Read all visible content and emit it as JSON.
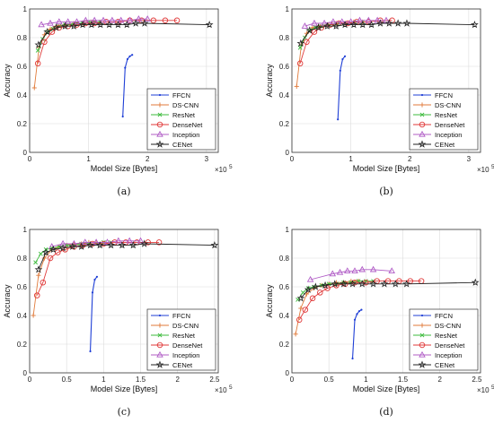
{
  "figure": {
    "panel_labels": [
      "(a)",
      "(b)",
      "(c)",
      "(d)"
    ],
    "xlabel": "Model Size [Bytes]",
    "ylabel": "Accuracy",
    "x_exponent": "×10",
    "x_exponent_power": "5"
  },
  "colors": {
    "FFCN": "#1f3fd6",
    "DS-CNN": "#e07a3a",
    "ResNet": "#3dbb3d",
    "DenseNet": "#e03a3a",
    "Inception": "#b05cc6",
    "CENet": "#222222"
  },
  "chart_data": [
    {
      "type": "line",
      "panel": "(a)",
      "xlabel": "Model Size [Bytes]",
      "ylabel": "Accuracy",
      "x_scale_note": "×10^5",
      "xlim": [
        0,
        3.2
      ],
      "ylim": [
        0,
        1
      ],
      "xticks": [
        0,
        1,
        2,
        3
      ],
      "yticks": [
        0,
        0.2,
        0.4,
        0.6,
        0.8,
        1
      ],
      "grid": true,
      "legend": "bottom-right",
      "series": [
        {
          "name": "FFCN",
          "marker": "dot",
          "x": [
            1.58,
            1.62,
            1.66,
            1.7,
            1.74
          ],
          "y": [
            0.25,
            0.59,
            0.65,
            0.67,
            0.68
          ]
        },
        {
          "name": "DS-CNN",
          "marker": "plus",
          "x": [
            0.08,
            0.16,
            0.25,
            0.35,
            0.45,
            0.6,
            0.75,
            0.9,
            1.05,
            1.2
          ],
          "y": [
            0.45,
            0.73,
            0.82,
            0.86,
            0.88,
            0.89,
            0.9,
            0.9,
            0.91,
            0.91
          ]
        },
        {
          "name": "ResNet",
          "marker": "x",
          "x": [
            0.14,
            0.22,
            0.3,
            0.4,
            0.5,
            0.6,
            0.7,
            0.8,
            0.9,
            1.0,
            1.1,
            1.2
          ],
          "y": [
            0.71,
            0.79,
            0.84,
            0.86,
            0.88,
            0.89,
            0.89,
            0.9,
            0.9,
            0.91,
            0.91,
            0.91
          ]
        },
        {
          "name": "DenseNet",
          "marker": "circle",
          "x": [
            0.14,
            0.25,
            0.38,
            0.5,
            0.65,
            0.8,
            0.95,
            1.1,
            1.3,
            1.5,
            1.7,
            1.9,
            2.1,
            2.3,
            2.5
          ],
          "y": [
            0.62,
            0.77,
            0.84,
            0.87,
            0.88,
            0.89,
            0.9,
            0.9,
            0.91,
            0.91,
            0.92,
            0.92,
            0.92,
            0.92,
            0.92
          ]
        },
        {
          "name": "Inception",
          "marker": "triangle",
          "x": [
            0.2,
            0.35,
            0.5,
            0.65,
            0.8,
            0.95,
            1.1,
            1.25,
            1.4,
            1.55,
            1.7,
            1.85,
            2.0
          ],
          "y": [
            0.89,
            0.9,
            0.91,
            0.91,
            0.91,
            0.92,
            0.92,
            0.92,
            0.92,
            0.92,
            0.92,
            0.93,
            0.93
          ]
        },
        {
          "name": "CENet",
          "marker": "star",
          "x": [
            0.15,
            0.3,
            0.45,
            0.6,
            0.75,
            0.9,
            1.05,
            1.2,
            1.35,
            1.5,
            1.65,
            1.8,
            1.95,
            3.05
          ],
          "y": [
            0.75,
            0.84,
            0.87,
            0.88,
            0.88,
            0.89,
            0.89,
            0.89,
            0.89,
            0.89,
            0.89,
            0.9,
            0.9,
            0.89
          ]
        }
      ]
    },
    {
      "type": "line",
      "panel": "(b)",
      "xlabel": "Model Size [Bytes]",
      "ylabel": "Accuracy",
      "x_scale_note": "×10^5",
      "xlim": [
        0,
        3.2
      ],
      "ylim": [
        0,
        1
      ],
      "xticks": [
        0,
        1,
        2,
        3
      ],
      "yticks": [
        0,
        0.2,
        0.4,
        0.6,
        0.8,
        1
      ],
      "grid": true,
      "legend": "bottom-right",
      "series": [
        {
          "name": "FFCN",
          "marker": "dot",
          "x": [
            0.78,
            0.82,
            0.86,
            0.9
          ],
          "y": [
            0.23,
            0.57,
            0.65,
            0.67
          ]
        },
        {
          "name": "DS-CNN",
          "marker": "plus",
          "x": [
            0.08,
            0.16,
            0.25,
            0.35,
            0.45,
            0.6,
            0.75,
            0.9,
            1.05,
            1.2
          ],
          "y": [
            0.46,
            0.75,
            0.83,
            0.87,
            0.88,
            0.89,
            0.9,
            0.9,
            0.91,
            0.91
          ]
        },
        {
          "name": "ResNet",
          "marker": "x",
          "x": [
            0.14,
            0.22,
            0.3,
            0.4,
            0.5,
            0.6,
            0.7,
            0.8,
            0.9,
            1.0,
            1.1,
            1.2
          ],
          "y": [
            0.73,
            0.8,
            0.85,
            0.87,
            0.88,
            0.89,
            0.89,
            0.9,
            0.9,
            0.9,
            0.91,
            0.91
          ]
        },
        {
          "name": "DenseNet",
          "marker": "circle",
          "x": [
            0.14,
            0.25,
            0.38,
            0.5,
            0.65,
            0.8,
            0.95,
            1.1,
            1.3,
            1.5,
            1.7
          ],
          "y": [
            0.62,
            0.77,
            0.84,
            0.87,
            0.89,
            0.9,
            0.9,
            0.91,
            0.91,
            0.92,
            0.92
          ]
        },
        {
          "name": "Inception",
          "marker": "triangle",
          "x": [
            0.22,
            0.38,
            0.55,
            0.7,
            0.85,
            1.0,
            1.15,
            1.3,
            1.45,
            1.6
          ],
          "y": [
            0.88,
            0.9,
            0.9,
            0.91,
            0.91,
            0.91,
            0.92,
            0.92,
            0.92,
            0.92
          ]
        },
        {
          "name": "CENet",
          "marker": "star",
          "x": [
            0.15,
            0.3,
            0.45,
            0.6,
            0.75,
            0.9,
            1.05,
            1.2,
            1.35,
            1.5,
            1.65,
            1.8,
            1.95,
            3.1
          ],
          "y": [
            0.76,
            0.85,
            0.87,
            0.88,
            0.88,
            0.89,
            0.89,
            0.89,
            0.89,
            0.9,
            0.9,
            0.9,
            0.9,
            0.89
          ]
        }
      ]
    },
    {
      "type": "line",
      "panel": "(c)",
      "xlabel": "Model Size [Bytes]",
      "ylabel": "Accuracy",
      "x_scale_note": "×10^5",
      "xlim": [
        0,
        2.55
      ],
      "ylim": [
        0,
        1
      ],
      "xticks": [
        0,
        0.5,
        1,
        1.5,
        2,
        2.5
      ],
      "yticks": [
        0,
        0.2,
        0.4,
        0.6,
        0.8,
        1
      ],
      "grid": true,
      "legend": "bottom-right",
      "series": [
        {
          "name": "FFCN",
          "marker": "dot",
          "x": [
            0.82,
            0.85,
            0.88,
            0.91
          ],
          "y": [
            0.15,
            0.56,
            0.65,
            0.67
          ]
        },
        {
          "name": "DS-CNN",
          "marker": "plus",
          "x": [
            0.05,
            0.12,
            0.2,
            0.3,
            0.4,
            0.5,
            0.6,
            0.7,
            0.8,
            0.9
          ],
          "y": [
            0.4,
            0.68,
            0.8,
            0.86,
            0.88,
            0.89,
            0.9,
            0.9,
            0.91,
            0.91
          ]
        },
        {
          "name": "ResNet",
          "marker": "x",
          "x": [
            0.08,
            0.15,
            0.22,
            0.3,
            0.4,
            0.5,
            0.6,
            0.7,
            0.8,
            0.9,
            1.0,
            1.1
          ],
          "y": [
            0.77,
            0.83,
            0.86,
            0.87,
            0.88,
            0.89,
            0.89,
            0.9,
            0.9,
            0.9,
            0.91,
            0.91
          ]
        },
        {
          "name": "DenseNet",
          "marker": "circle",
          "x": [
            0.1,
            0.18,
            0.28,
            0.38,
            0.48,
            0.6,
            0.72,
            0.85,
            1.0,
            1.15,
            1.3,
            1.45,
            1.6,
            1.75
          ],
          "y": [
            0.54,
            0.63,
            0.8,
            0.84,
            0.86,
            0.88,
            0.89,
            0.9,
            0.9,
            0.91,
            0.91,
            0.91,
            0.91,
            0.91
          ]
        },
        {
          "name": "Inception",
          "marker": "triangle",
          "x": [
            0.3,
            0.45,
            0.6,
            0.75,
            0.9,
            1.05,
            1.2,
            1.35,
            1.5
          ],
          "y": [
            0.88,
            0.9,
            0.9,
            0.91,
            0.91,
            0.91,
            0.92,
            0.92,
            0.92
          ]
        },
        {
          "name": "CENet",
          "marker": "star",
          "x": [
            0.12,
            0.22,
            0.32,
            0.45,
            0.58,
            0.7,
            0.82,
            0.95,
            1.1,
            1.25,
            1.4,
            1.55,
            2.5
          ],
          "y": [
            0.72,
            0.84,
            0.86,
            0.87,
            0.88,
            0.88,
            0.89,
            0.89,
            0.89,
            0.89,
            0.89,
            0.9,
            0.89
          ]
        }
      ]
    },
    {
      "type": "line",
      "panel": "(d)",
      "xlabel": "Model Size [Bytes]",
      "ylabel": "Accuracy",
      "x_scale_note": "×10^5",
      "xlim": [
        0,
        2.55
      ],
      "ylim": [
        0,
        1
      ],
      "xticks": [
        0,
        0.5,
        1,
        1.5,
        2,
        2.5
      ],
      "yticks": [
        0,
        0.2,
        0.4,
        0.6,
        0.8,
        1
      ],
      "grid": true,
      "legend": "bottom-right",
      "series": [
        {
          "name": "FFCN",
          "marker": "dot",
          "x": [
            0.82,
            0.85,
            0.88,
            0.91,
            0.94
          ],
          "y": [
            0.1,
            0.37,
            0.41,
            0.43,
            0.44
          ]
        },
        {
          "name": "DS-CNN",
          "marker": "plus",
          "x": [
            0.05,
            0.12,
            0.2,
            0.3,
            0.4,
            0.5,
            0.6,
            0.7,
            0.8,
            0.9
          ],
          "y": [
            0.27,
            0.45,
            0.55,
            0.59,
            0.61,
            0.62,
            0.63,
            0.63,
            0.64,
            0.64
          ]
        },
        {
          "name": "ResNet",
          "marker": "x",
          "x": [
            0.08,
            0.15,
            0.22,
            0.3,
            0.4,
            0.5,
            0.6,
            0.7,
            0.8,
            0.9,
            1.0,
            1.1
          ],
          "y": [
            0.51,
            0.56,
            0.59,
            0.6,
            0.61,
            0.62,
            0.62,
            0.63,
            0.63,
            0.64,
            0.64,
            0.64
          ]
        },
        {
          "name": "DenseNet",
          "marker": "circle",
          "x": [
            0.1,
            0.18,
            0.28,
            0.38,
            0.48,
            0.6,
            0.72,
            0.85,
            1.0,
            1.15,
            1.3,
            1.45,
            1.6,
            1.75
          ],
          "y": [
            0.37,
            0.44,
            0.52,
            0.56,
            0.59,
            0.61,
            0.62,
            0.63,
            0.63,
            0.64,
            0.64,
            0.64,
            0.64,
            0.64
          ]
        },
        {
          "name": "Inception",
          "marker": "triangle",
          "x": [
            0.25,
            0.55,
            0.65,
            0.75,
            0.85,
            0.95,
            1.1,
            1.35
          ],
          "y": [
            0.65,
            0.69,
            0.7,
            0.71,
            0.71,
            0.72,
            0.72,
            0.71
          ]
        },
        {
          "name": "CENet",
          "marker": "star",
          "x": [
            0.12,
            0.22,
            0.32,
            0.45,
            0.58,
            0.7,
            0.82,
            0.95,
            1.1,
            1.25,
            1.4,
            1.55,
            2.48
          ],
          "y": [
            0.52,
            0.58,
            0.6,
            0.61,
            0.62,
            0.62,
            0.62,
            0.62,
            0.62,
            0.62,
            0.62,
            0.62,
            0.63
          ]
        }
      ]
    }
  ]
}
